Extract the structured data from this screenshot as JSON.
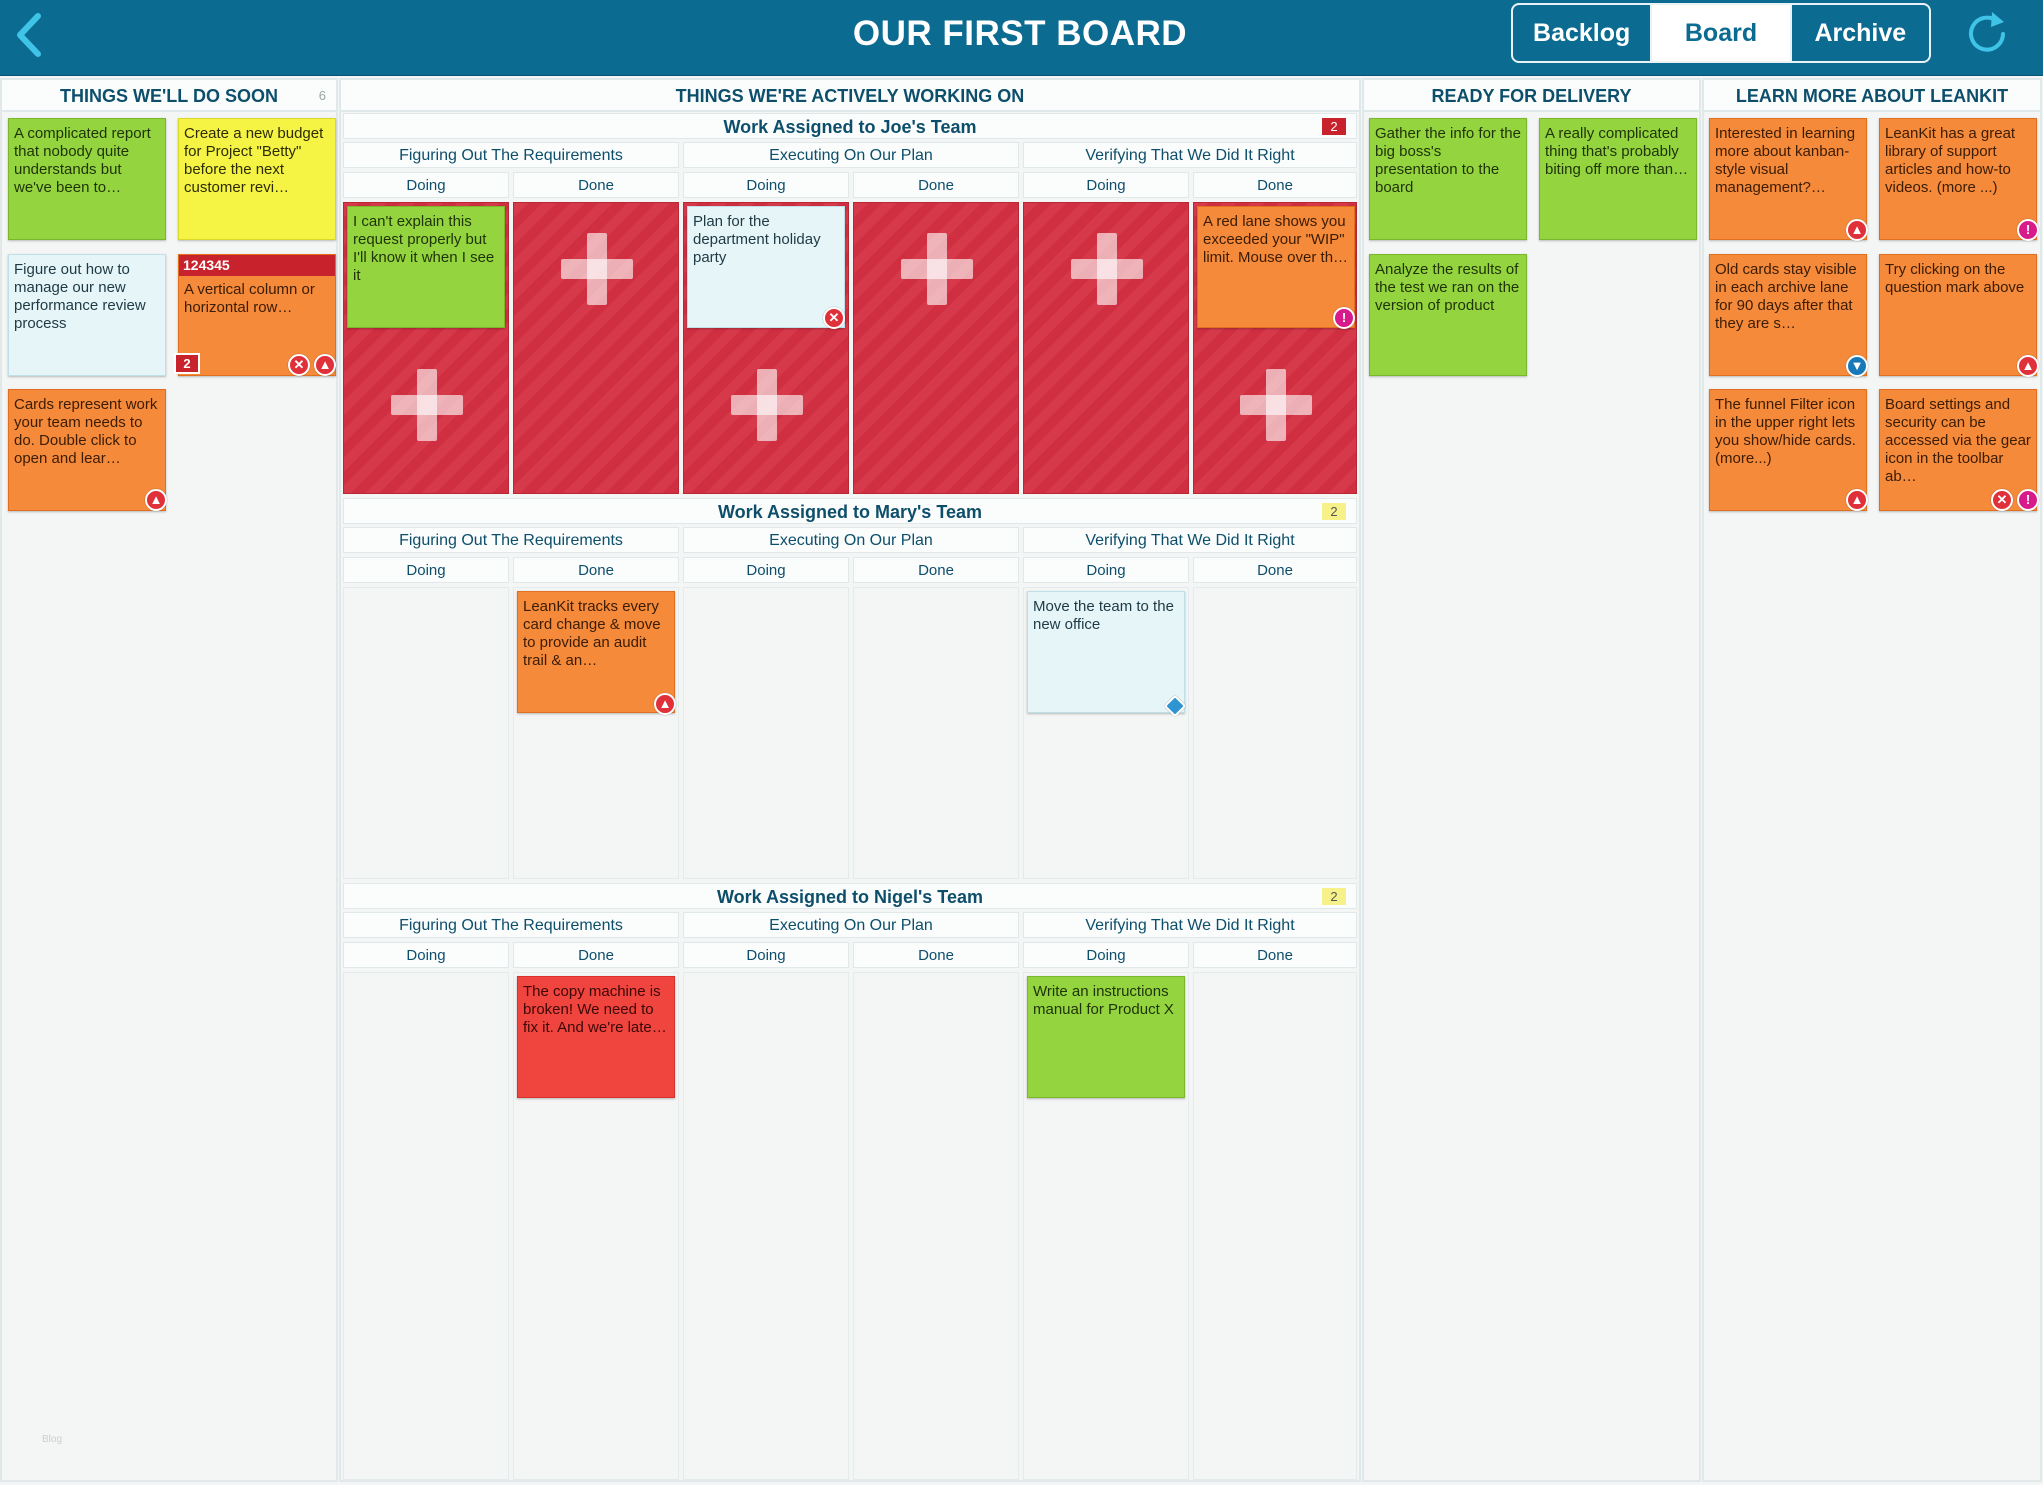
{
  "header": {
    "title": "OUR FIRST BOARD",
    "tabs": [
      {
        "label": "Backlog",
        "active": false
      },
      {
        "label": "Board",
        "active": true
      },
      {
        "label": "Archive",
        "active": false
      }
    ],
    "back_icon": "chevron-left-icon",
    "refresh_icon": "refresh-icon"
  },
  "colors": {
    "header_bg": "#0c6b91",
    "card_green": "#94d43f",
    "card_yellow": "#f5f344",
    "card_orange": "#f48a3a",
    "card_light": "#e6f5f8",
    "card_red": "#f0443f",
    "wip_red": "#d63a4a"
  },
  "columns": {
    "soon": {
      "title": "THINGS WE'LL DO SOON",
      "count": "6",
      "cards": [
        {
          "text": "A complicated report that nobody quite understands but we've been to…",
          "color": "green"
        },
        {
          "text": "Create a new budget for Project \"Betty\" before the next customer revi…",
          "color": "yellow"
        },
        {
          "text": "Figure out how to manage our new performance review process",
          "color": "light"
        },
        {
          "id": "124345",
          "text": "A vertical column or horizontal row…",
          "color": "orange",
          "blocked_count": "2",
          "icons": [
            "close-icon",
            "priority-up-icon"
          ]
        },
        {
          "text": "Cards represent work your team needs to do. Double click to open and lear…",
          "color": "orange",
          "icons": [
            "priority-up-icon"
          ]
        }
      ]
    },
    "active": {
      "title": "THINGS WE'RE ACTIVELY WORKING ON",
      "sub_columns": [
        "Figuring Out The Requirements",
        "Executing On Our Plan",
        "Verifying That We Did It Right"
      ],
      "leaf_labels": [
        "Doing",
        "Done",
        "Doing",
        "Done",
        "Doing",
        "Done"
      ],
      "lanes": [
        {
          "name": "Work Assigned to Joe's Team",
          "badge": "2",
          "cards": [
            {
              "text": "I can't explain this request properly but I'll know it when I see it",
              "color": "green"
            },
            {
              "text": "Plan for the department holiday party",
              "color": "light",
              "icons": [
                "close-icon"
              ]
            },
            {
              "text": "A red lane shows you exceeded your \"WIP\" limit. Mouse over th…",
              "color": "orange",
              "icons": [
                "alert-icon"
              ]
            }
          ]
        },
        {
          "name": "Work Assigned to Mary's Team",
          "badge": "2",
          "cards": [
            {
              "text": "LeanKit tracks every card change & move to provide an audit trail & an…",
              "color": "orange",
              "icons": [
                "priority-up-icon"
              ]
            },
            {
              "text": "Move the team to the new office",
              "color": "light",
              "icons": [
                "tag-icon"
              ]
            }
          ]
        },
        {
          "name": "Work Assigned to Nigel's Team",
          "badge": "2",
          "cards": [
            {
              "text": "The copy machine is broken! We need to fix it. And we're late…",
              "color": "red"
            },
            {
              "text": "Write an instructions manual for Product X",
              "color": "green"
            }
          ]
        }
      ]
    },
    "delivery": {
      "title": "READY FOR DELIVERY",
      "cards": [
        {
          "text": "Gather the info for the big boss's presentation to the board",
          "color": "green"
        },
        {
          "text": "A really complicated thing that's probably biting off more than…",
          "color": "green"
        },
        {
          "text": "Analyze the results of the test we ran on the version of product",
          "color": "green"
        }
      ]
    },
    "learn": {
      "title": "LEARN MORE ABOUT LEANKIT",
      "cards": [
        {
          "text": "Interested in learning more about kanban-style visual management?…",
          "color": "orange",
          "icons": [
            "priority-up-icon"
          ]
        },
        {
          "text": "LeanKit has a great library of support articles and how-to videos. (more ...)",
          "color": "orange",
          "icons": [
            "alert-icon"
          ]
        },
        {
          "text": "Old cards stay visible in each archive lane for 90 days after that they are s…",
          "color": "orange",
          "icons": [
            "priority-down-icon"
          ]
        },
        {
          "text": "Try clicking on the question mark above",
          "color": "orange",
          "icons": [
            "priority-up-icon"
          ]
        },
        {
          "text": "The funnel Filter icon in the upper right lets you show/hide cards. (more...)",
          "color": "orange",
          "icons": [
            "priority-up-icon"
          ]
        },
        {
          "text": "Board settings and security can be accessed via the gear icon in the toolbar ab…",
          "color": "orange",
          "icons": [
            "close-icon",
            "alert-icon"
          ]
        }
      ]
    }
  },
  "watermark": "Blog"
}
